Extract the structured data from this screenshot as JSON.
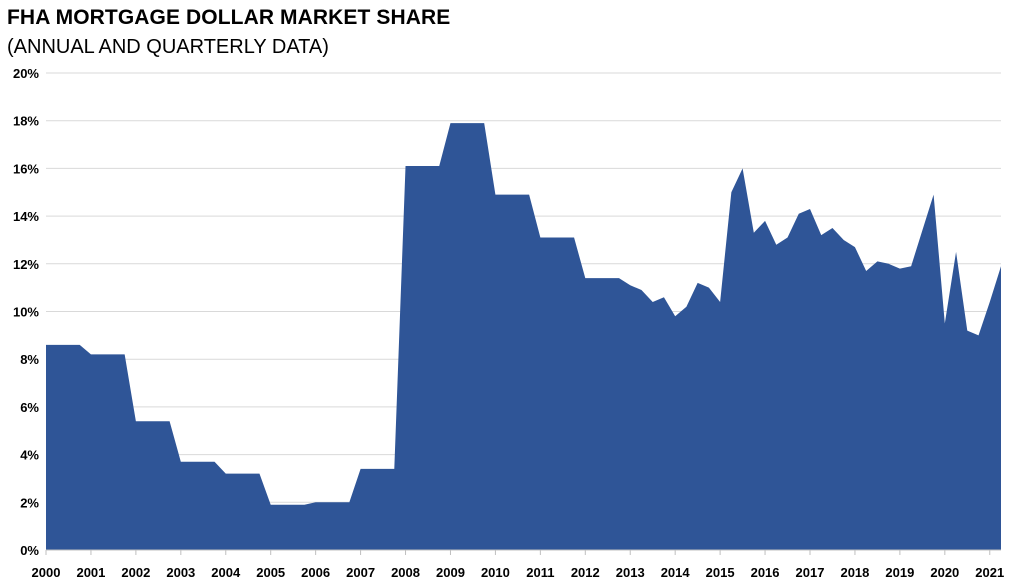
{
  "chart_data": {
    "type": "area",
    "title": "FHA MORTGAGE DOLLAR MARKET SHARE",
    "subtitle": "(ANNUAL AND QUARTERLY DATA)",
    "xlabel": "",
    "ylabel": "",
    "color": "#2f5597",
    "grid": true,
    "ylim": [
      0,
      20
    ],
    "xlim": [
      2000,
      2021.25
    ],
    "y_ticks": [
      "0%",
      "2%",
      "4%",
      "6%",
      "8%",
      "10%",
      "12%",
      "14%",
      "16%",
      "18%",
      "20%"
    ],
    "x_ticks": [
      "2000",
      "2001",
      "2002",
      "2003",
      "2004",
      "2005",
      "2006",
      "2007",
      "2008",
      "2009",
      "2010",
      "2011",
      "2012",
      "2013",
      "2014",
      "2015",
      "2016",
      "2017",
      "2018",
      "2019",
      "2020",
      "2021"
    ],
    "series": [
      {
        "x": [
          2000.0,
          2000.75,
          2001.0,
          2001.75,
          2002.0,
          2002.75,
          2003.0,
          2003.75,
          2004.0,
          2004.75,
          2005.0,
          2005.75,
          2006.0,
          2006.75,
          2007.0,
          2007.75,
          2008.0,
          2008.75,
          2009.0,
          2009.75,
          2010.0,
          2010.75,
          2011.0,
          2011.75,
          2012.0,
          2012.75,
          2013.0,
          2013.25,
          2013.5,
          2013.75,
          2014.0,
          2014.25,
          2014.5,
          2014.75,
          2015.0,
          2015.25,
          2015.5,
          2015.75,
          2016.0,
          2016.25,
          2016.5,
          2016.75,
          2017.0,
          2017.25,
          2017.5,
          2017.75,
          2018.0,
          2018.25,
          2018.5,
          2018.75,
          2019.0,
          2019.25,
          2019.5,
          2019.75,
          2020.0,
          2020.25,
          2020.5,
          2020.75,
          2021.0,
          2021.25
        ],
        "values": [
          8.6,
          8.6,
          8.2,
          8.2,
          5.4,
          5.4,
          3.7,
          3.7,
          3.2,
          3.2,
          1.9,
          1.9,
          2.0,
          2.0,
          3.4,
          3.4,
          16.1,
          16.1,
          17.9,
          17.9,
          14.9,
          14.9,
          13.1,
          13.1,
          11.4,
          11.4,
          11.1,
          10.9,
          10.4,
          10.6,
          9.8,
          10.2,
          11.2,
          11.0,
          10.4,
          15.0,
          16.0,
          13.3,
          13.8,
          12.8,
          13.1,
          14.1,
          14.3,
          13.2,
          13.5,
          13.0,
          12.7,
          11.7,
          12.1,
          12.0,
          11.8,
          11.9,
          13.4,
          14.9,
          9.5,
          12.5,
          9.2,
          9.0,
          10.4,
          11.9
        ]
      }
    ]
  }
}
